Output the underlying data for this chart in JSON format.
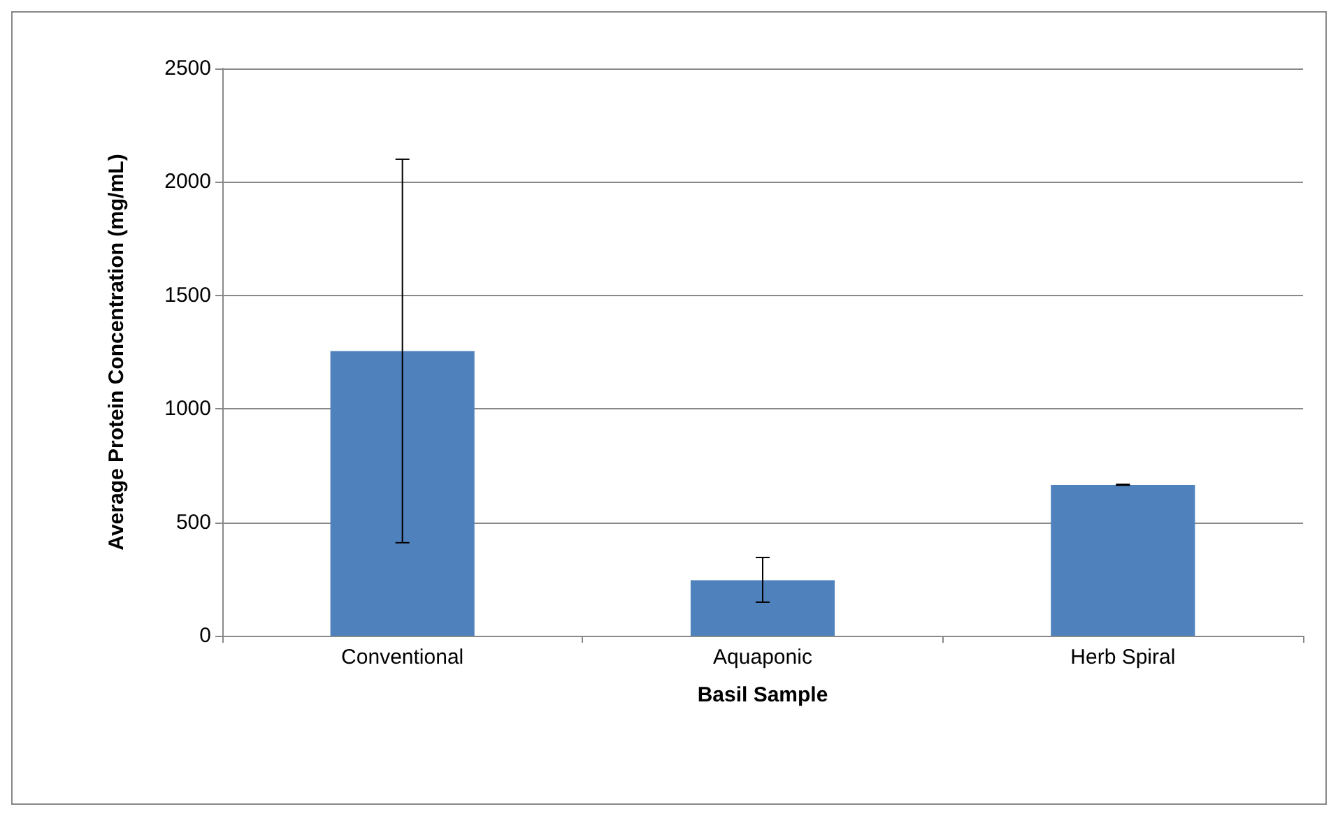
{
  "chart_data": {
    "type": "bar",
    "xlabel": "Basil Sample",
    "ylabel": "Average Protein Concentration (mg/mL)",
    "categories": [
      "Conventional",
      "Aquaponic",
      "Herb Spiral"
    ],
    "values": [
      1255,
      245,
      665
    ],
    "color": "#4f81bd",
    "errors": [
      [
        410,
        2100
      ],
      [
        148,
        345
      ],
      [
        663,
        667
      ]
    ],
    "ylim": [
      0,
      2500
    ],
    "yticks": [
      0,
      500,
      1000,
      1500,
      2000,
      2500
    ],
    "grid": "y"
  }
}
